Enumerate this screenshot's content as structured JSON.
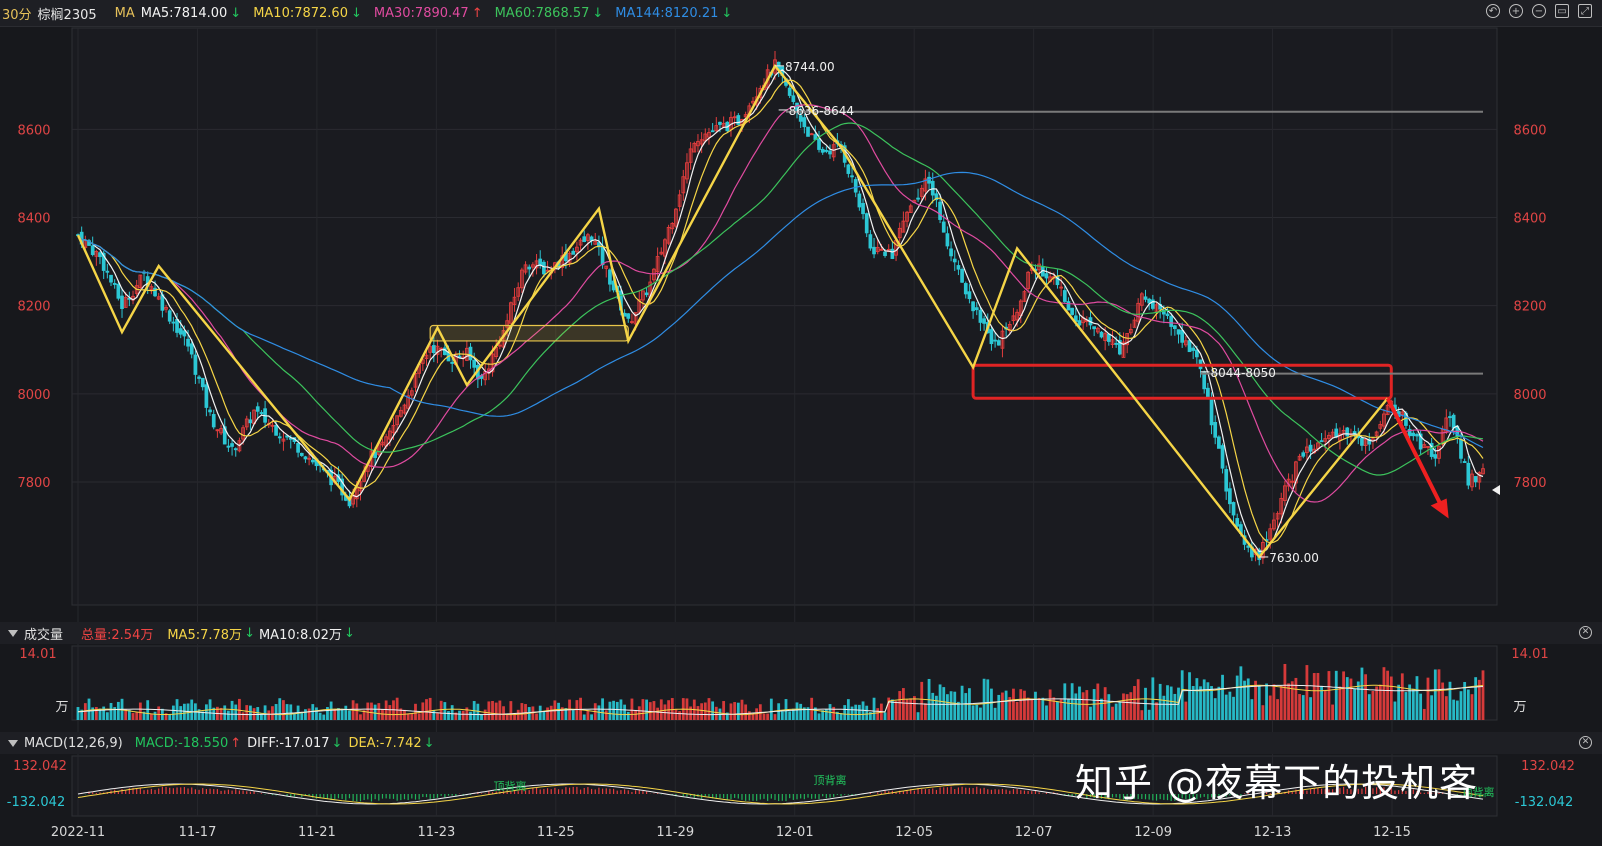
{
  "header": {
    "period": "30分",
    "symbol": "棕榈2305",
    "ma_prefix": "MA",
    "ma_items": [
      {
        "label": "MA5:7814.00",
        "arrow": "↓",
        "color": "#f3f3f3",
        "arrow_color": "#22c55e"
      },
      {
        "label": "MA10:7872.60",
        "arrow": "↓",
        "color": "#f5d547",
        "arrow_color": "#22c55e"
      },
      {
        "label": "MA30:7890.47",
        "arrow": "↑",
        "color": "#e04ba0",
        "arrow_color": "#ef4444"
      },
      {
        "label": "MA60:7868.57",
        "arrow": "↓",
        "color": "#3cc35c",
        "arrow_color": "#22c55e"
      },
      {
        "label": "MA144:8120.21",
        "arrow": "↓",
        "color": "#2f8de4",
        "arrow_color": "#22c55e"
      }
    ],
    "tools": [
      "undo-icon",
      "zoom-in-icon",
      "zoom-out-icon",
      "window-icon",
      "expand-icon"
    ]
  },
  "volume_panel": {
    "title": "成交量",
    "total": "总量:2.54万",
    "ma5": "MA5:7.78万",
    "ma5_arrow": "↓",
    "ma10": "MA10:8.02万",
    "ma10_arrow": "↓",
    "axis_top": "14.01",
    "unit": "万"
  },
  "macd_panel": {
    "title": "MACD(12,26,9)",
    "macd": "MACD:-18.550",
    "macd_arrow": "↑",
    "diff": "DIFF:-17.017",
    "diff_arrow": "↓",
    "dea": "DEA:-7.742",
    "dea_arrow": "↓",
    "axis_top": "132.042",
    "axis_bottom": "-132.042",
    "labels": [
      "顶背离",
      "顶背离",
      "顶背离"
    ]
  },
  "watermark": "知乎 @夜幕下的投机客",
  "chart_data": {
    "type": "candlestick",
    "instrument": "棕榈2305",
    "period": "30分",
    "ylim": [
      7580,
      8780
    ],
    "y_ticks": [
      7800,
      8000,
      8200,
      8400,
      8600
    ],
    "x_ticks": [
      "2022-11",
      "11-17",
      "11-21",
      "11-23",
      "11-25",
      "11-29",
      "12-01",
      "12-05",
      "12-07",
      "12-09",
      "12-13",
      "12-15"
    ],
    "price_path": [
      [
        0,
        8360
      ],
      [
        6,
        8310
      ],
      [
        12,
        8200
      ],
      [
        18,
        8270
      ],
      [
        24,
        8190
      ],
      [
        30,
        8110
      ],
      [
        36,
        7950
      ],
      [
        42,
        7870
      ],
      [
        48,
        7960
      ],
      [
        54,
        7920
      ],
      [
        60,
        7880
      ],
      [
        66,
        7830
      ],
      [
        70,
        7800
      ],
      [
        74,
        7760
      ],
      [
        79,
        7850
      ],
      [
        84,
        7890
      ],
      [
        90,
        8000
      ],
      [
        96,
        8110
      ],
      [
        102,
        8080
      ],
      [
        106,
        8090
      ],
      [
        110,
        8030
      ],
      [
        116,
        8140
      ],
      [
        122,
        8300
      ],
      [
        128,
        8280
      ],
      [
        134,
        8320
      ],
      [
        140,
        8360
      ],
      [
        146,
        8240
      ],
      [
        150,
        8160
      ],
      [
        156,
        8250
      ],
      [
        162,
        8400
      ],
      [
        168,
        8580
      ],
      [
        174,
        8600
      ],
      [
        180,
        8620
      ],
      [
        186,
        8700
      ],
      [
        190,
        8744
      ],
      [
        196,
        8640
      ],
      [
        202,
        8550
      ],
      [
        208,
        8560
      ],
      [
        212,
        8460
      ],
      [
        216,
        8330
      ],
      [
        222,
        8320
      ],
      [
        226,
        8420
      ],
      [
        232,
        8490
      ],
      [
        238,
        8320
      ],
      [
        244,
        8200
      ],
      [
        250,
        8110
      ],
      [
        254,
        8150
      ],
      [
        260,
        8290
      ],
      [
        266,
        8270
      ],
      [
        272,
        8170
      ],
      [
        278,
        8150
      ],
      [
        284,
        8100
      ],
      [
        290,
        8220
      ],
      [
        296,
        8180
      ],
      [
        302,
        8120
      ],
      [
        306,
        8060
      ],
      [
        310,
        7900
      ],
      [
        314,
        7750
      ],
      [
        318,
        7650
      ],
      [
        322,
        7630
      ],
      [
        328,
        7760
      ],
      [
        334,
        7870
      ],
      [
        340,
        7900
      ],
      [
        346,
        7910
      ],
      [
        352,
        7890
      ],
      [
        358,
        7990
      ],
      [
        364,
        7900
      ],
      [
        370,
        7860
      ],
      [
        374,
        7960
      ],
      [
        379,
        7800
      ],
      [
        383,
        7820
      ]
    ],
    "moving_averages": [
      {
        "name": "MA5",
        "value": 7814.0,
        "color": "#f3f3f3",
        "smooth": 4
      },
      {
        "name": "MA10",
        "value": 7872.6,
        "color": "#f5d547",
        "smooth": 9
      },
      {
        "name": "MA30",
        "value": 7890.47,
        "color": "#e04ba0",
        "smooth": 26
      },
      {
        "name": "MA60",
        "value": 7868.57,
        "color": "#3cc35c",
        "smooth": 45
      },
      {
        "name": "MA144",
        "value": 8120.21,
        "color": "#2f8de4",
        "smooth": 85
      }
    ],
    "zigzag": [
      [
        0,
        8360
      ],
      [
        12,
        8140
      ],
      [
        22,
        8290
      ],
      [
        74,
        7760
      ],
      [
        98,
        8150
      ],
      [
        106,
        8020
      ],
      [
        142,
        8420
      ],
      [
        150,
        8120
      ],
      [
        190,
        8744
      ],
      [
        208,
        8560
      ],
      [
        244,
        8060
      ],
      [
        256,
        8330
      ],
      [
        322,
        7630
      ],
      [
        357,
        7990
      ]
    ],
    "annotations": [
      {
        "text": "8744.00",
        "x": 190,
        "y": 8744
      },
      {
        "text": "8636-8644",
        "x": 191,
        "y": 8644
      },
      {
        "text": "8044-8050",
        "x": 306,
        "y": 8050
      },
      {
        "text": "7630.00",
        "x": 322,
        "y": 7630
      }
    ],
    "levels": [
      {
        "y": 8640,
        "from": 193,
        "to": 383
      },
      {
        "y": 8046,
        "from": 306,
        "to": 383
      }
    ],
    "boxes": [
      {
        "x0": 96,
        "x1": 150,
        "y0": 8120,
        "y1": 8155,
        "style": "yellow"
      },
      {
        "x0": 244,
        "x1": 358,
        "y0": 7990,
        "y1": 8065,
        "style": "red"
      }
    ],
    "arrow": {
      "from": [
        357,
        7990
      ],
      "to": [
        372,
        7740
      ]
    },
    "bars_count": 384
  }
}
